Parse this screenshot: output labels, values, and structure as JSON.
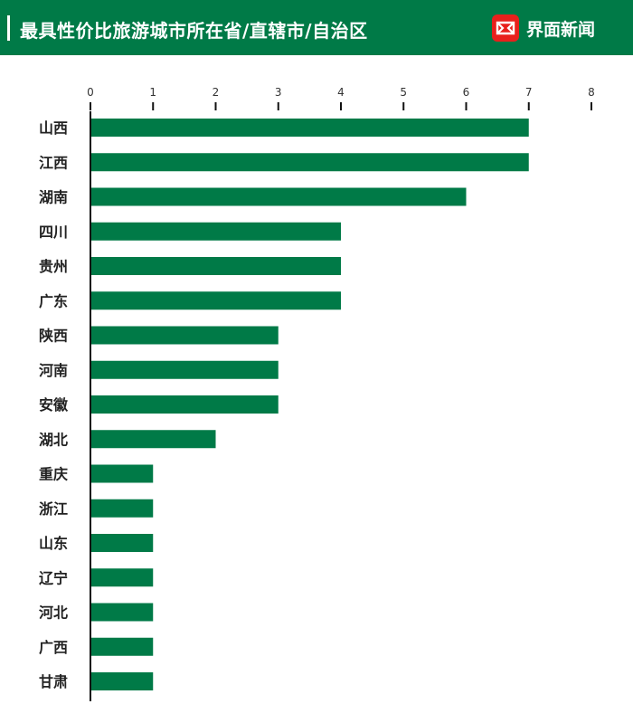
{
  "header": {
    "title": "最具性价比旅游城市所在省/直辖市/自治区",
    "brand_name": "界面新闻",
    "brand_logo": "jiemian-logo-icon"
  },
  "colors": {
    "header_bg": "#007a47",
    "bar": "#007a47",
    "brand_red": "#e8201c"
  },
  "chart_data": {
    "type": "bar",
    "orientation": "horizontal",
    "title": "最具性价比旅游城市所在省/直辖市/自治区",
    "xlabel": "",
    "ylabel": "",
    "xlim": [
      0,
      8
    ],
    "ticks": [
      "0",
      "1",
      "2",
      "3",
      "4",
      "5",
      "6",
      "7",
      "8"
    ],
    "grid": false,
    "axis_position": "top",
    "categories": [
      "山西",
      "江西",
      "湖南",
      "四川",
      "贵州",
      "广东",
      "陕西",
      "河南",
      "安徽",
      "湖北",
      "重庆",
      "浙江",
      "山东",
      "辽宁",
      "河北",
      "广西",
      "甘肃"
    ],
    "values": [
      7,
      7,
      6,
      4,
      4,
      4,
      3,
      3,
      3,
      2,
      1,
      1,
      1,
      1,
      1,
      1,
      1
    ]
  }
}
